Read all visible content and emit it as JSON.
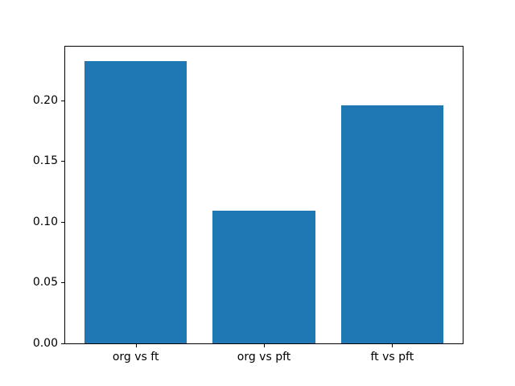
{
  "chart_data": {
    "type": "bar",
    "categories": [
      "org vs ft",
      "org vs pft",
      "ft vs pft"
    ],
    "values": [
      0.232,
      0.109,
      0.196
    ],
    "title": "",
    "xlabel": "",
    "ylabel": "",
    "ylim": [
      0,
      0.244
    ],
    "yticks": [
      0.0,
      0.05,
      0.1,
      0.15,
      0.2
    ],
    "ytick_labels": [
      "0.00",
      "0.05",
      "0.10",
      "0.15",
      "0.20"
    ],
    "bar_color": "#1f77b4",
    "axes_edge_color": "#000000",
    "background_color": "#ffffff",
    "grid": false,
    "legend": false,
    "bar_width_fraction": 0.8,
    "x_padding_units": 0.55
  }
}
